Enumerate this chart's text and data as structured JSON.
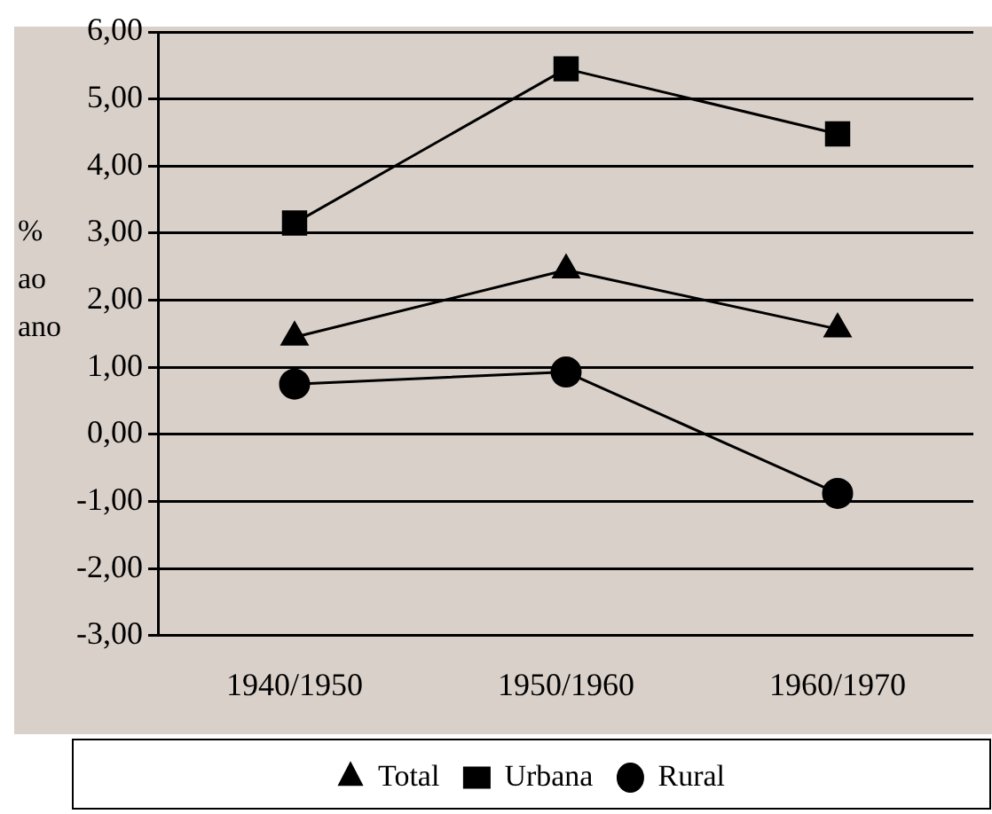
{
  "chart_data": {
    "type": "line",
    "ylabel": "% ao ano",
    "categories": [
      "1940/1950",
      "1950/1960",
      "1960/1970"
    ],
    "series": [
      {
        "name": "Total",
        "color": "#000000",
        "marker": "triangle",
        "values": [
          1.45,
          2.45,
          1.57
        ]
      },
      {
        "name": "Urbana",
        "color": "#000000",
        "marker": "square",
        "values": [
          3.15,
          5.45,
          4.48
        ]
      },
      {
        "name": "Rural",
        "color": "#000000",
        "marker": "circle",
        "values": [
          0.75,
          0.93,
          -0.88
        ]
      }
    ],
    "ylim": [
      -3,
      6
    ],
    "yticks": [
      {
        "value": -3,
        "label": "-3,00"
      },
      {
        "value": -2,
        "label": "-2,00"
      },
      {
        "value": -1,
        "label": "-1,00"
      },
      {
        "value": 0,
        "label": "0,00"
      },
      {
        "value": 1,
        "label": "1,00"
      },
      {
        "value": 2,
        "label": "2,00"
      },
      {
        "value": 3,
        "label": "3,00"
      },
      {
        "value": 4,
        "label": "4,00"
      },
      {
        "value": 5,
        "label": "5,00"
      },
      {
        "value": 6,
        "label": "6,00"
      }
    ],
    "grid": "y",
    "legend": "bottom",
    "line_style": "solid"
  }
}
